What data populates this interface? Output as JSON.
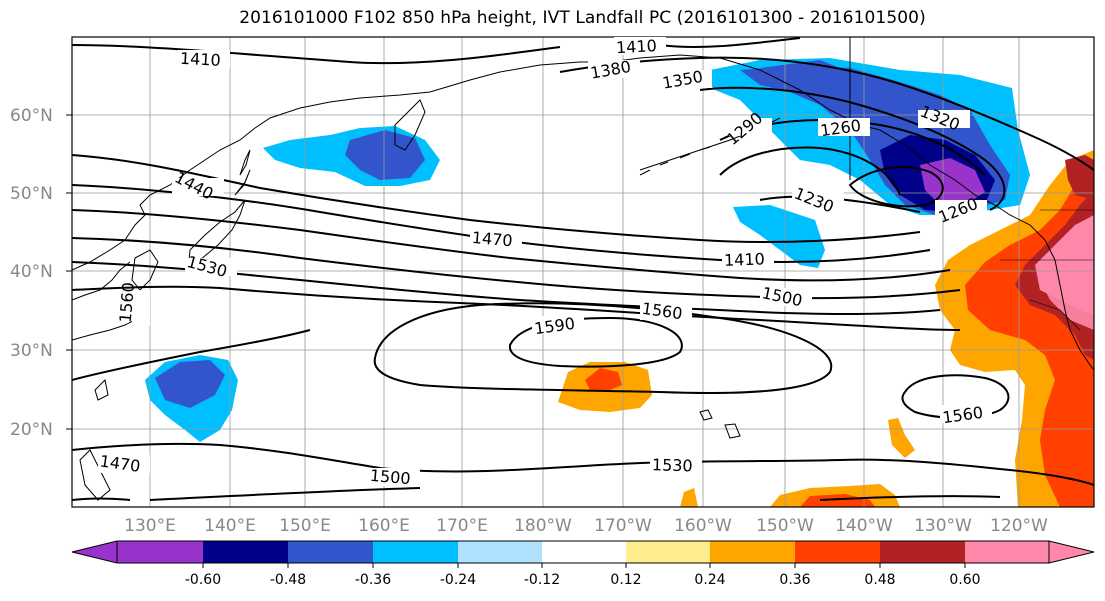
{
  "title": "2016101000 F102 850 hPa height, IVT Landfall PC (2016101300 - 2016101500)",
  "lat_labels": [
    "60°N",
    "50°N",
    "40°N",
    "30°N",
    "20°N"
  ],
  "lon_labels": [
    "130°E",
    "140°E",
    "150°E",
    "160°E",
    "170°E",
    "180°W",
    "170°W",
    "160°W",
    "150°W",
    "140°W",
    "130°W",
    "120°W"
  ],
  "contour_labels": [
    "1410",
    "1410",
    "1380",
    "1350",
    "1290",
    "1260",
    "1320",
    "1440",
    "1230",
    "1260",
    "1470",
    "1410",
    "1530",
    "1560",
    "1500",
    "1590",
    "1560",
    "1560",
    "1470",
    "1500",
    "1530"
  ],
  "colorbar": {
    "ticks": [
      "-0.60",
      "-0.48",
      "-0.36",
      "-0.24",
      "-0.12",
      "0.12",
      "0.24",
      "0.36",
      "0.48",
      "0.60"
    ],
    "colors": [
      "#9933cc",
      "#000088",
      "#3355cc",
      "#00bfff",
      "#b0e2ff",
      "#ffffff",
      "#ffec8b",
      "#ffa500",
      "#ff4000",
      "#b22222",
      "#ff88aa"
    ]
  }
}
